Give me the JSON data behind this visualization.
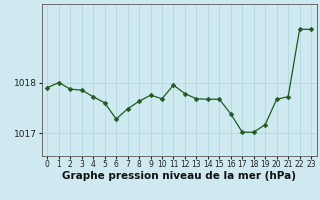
{
  "x": [
    0,
    1,
    2,
    3,
    4,
    5,
    6,
    7,
    8,
    9,
    10,
    11,
    12,
    13,
    14,
    15,
    16,
    17,
    18,
    19,
    20,
    21,
    22,
    23
  ],
  "y": [
    1017.9,
    1018.0,
    1017.87,
    1017.85,
    1017.72,
    1017.6,
    1017.28,
    1017.48,
    1017.63,
    1017.75,
    1017.68,
    1017.95,
    1017.78,
    1017.68,
    1017.67,
    1017.67,
    1017.38,
    1017.02,
    1017.02,
    1017.17,
    1017.67,
    1017.72,
    1019.05,
    1019.05
  ],
  "line_color": "#1e5c1e",
  "marker": "D",
  "marker_size": 2.5,
  "bg_color": "#ceeaf0",
  "grid_color": "#afd8e0",
  "xlabel": "Graphe pression niveau de la mer (hPa)",
  "xlabel_fontsize": 7.5,
  "ytick_labels": [
    "1017",
    "1018"
  ],
  "ytick_positions": [
    1017.0,
    1018.0
  ],
  "ylim": [
    1016.55,
    1019.55
  ],
  "xlim": [
    -0.5,
    23.5
  ],
  "xtick_labels": [
    "0",
    "1",
    "2",
    "3",
    "4",
    "5",
    "6",
    "7",
    "8",
    "9",
    "10",
    "11",
    "12",
    "13",
    "14",
    "15",
    "16",
    "17",
    "18",
    "19",
    "20",
    "21",
    "22",
    "23"
  ],
  "tick_fontsize": 5.5,
  "ytick_fontsize": 6.5,
  "figsize": [
    3.2,
    2.0
  ],
  "dpi": 100
}
